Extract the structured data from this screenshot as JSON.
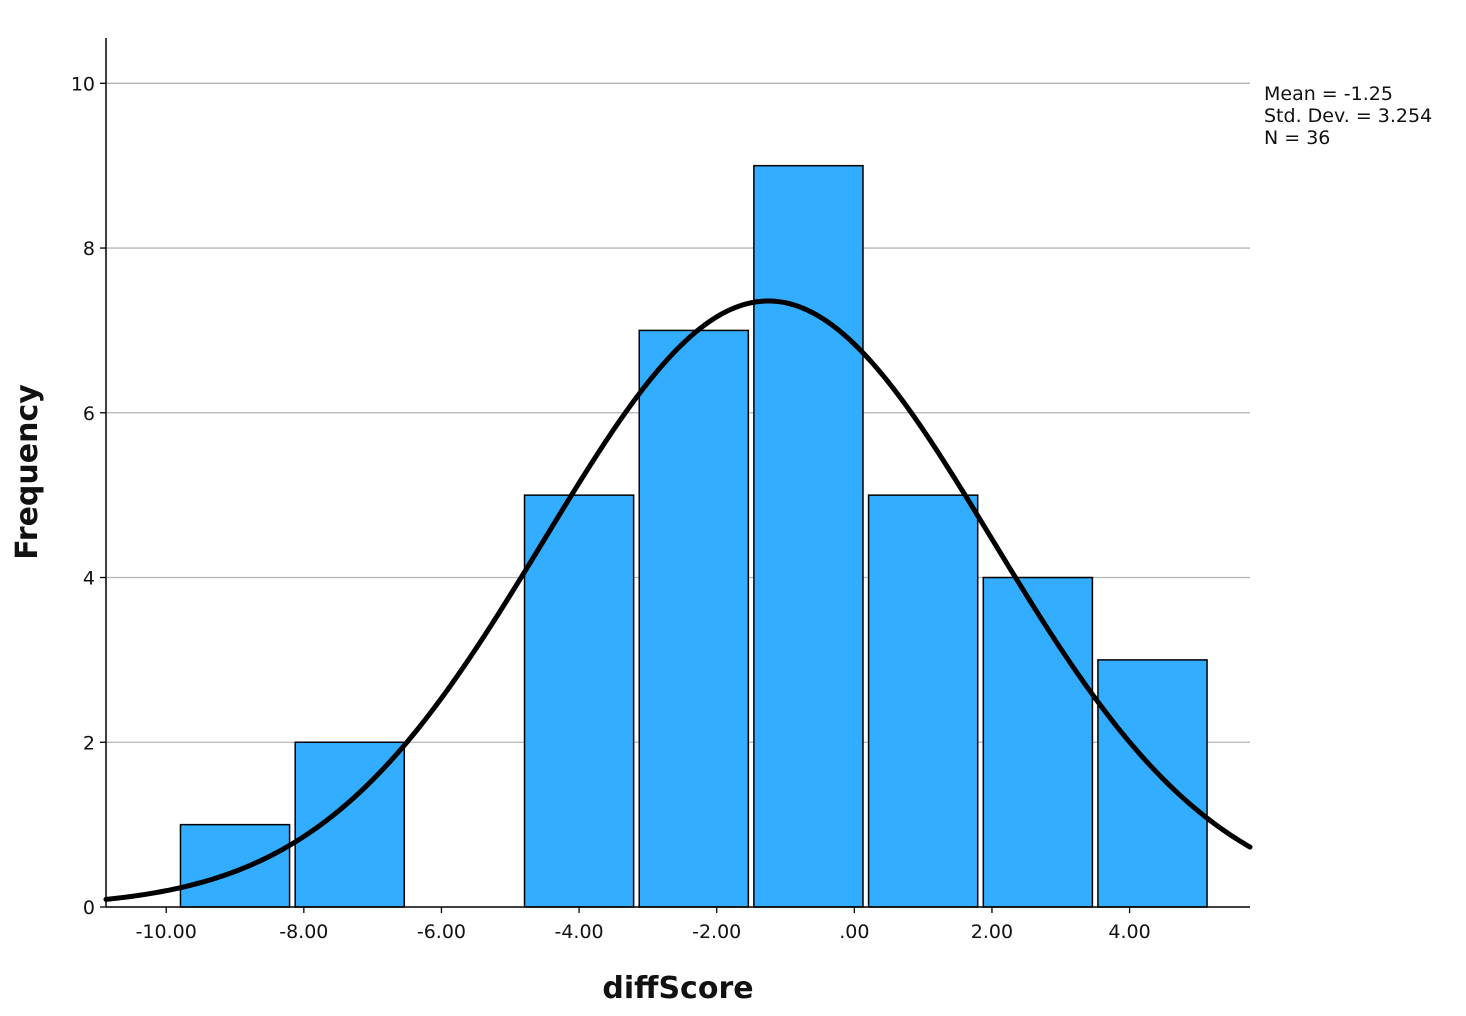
{
  "chart_data": {
    "type": "bar",
    "subtype": "histogram",
    "xlabel": "diffScore",
    "ylabel": "Frequency",
    "bins": [
      {
        "center": -9.0,
        "count": 1
      },
      {
        "center": -7.333,
        "count": 2
      },
      {
        "center": -5.667,
        "count": 0
      },
      {
        "center": -4.0,
        "count": 5
      },
      {
        "center": -2.333,
        "count": 7
      },
      {
        "center": -0.667,
        "count": 9
      },
      {
        "center": 1.0,
        "count": 5
      },
      {
        "center": 2.667,
        "count": 4
      },
      {
        "center": 4.333,
        "count": 3
      }
    ],
    "bin_width": 1.667,
    "x_ticks": [
      {
        "value": -10,
        "label": "-10.00"
      },
      {
        "value": -8,
        "label": "-8.00"
      },
      {
        "value": -6,
        "label": "-6.00"
      },
      {
        "value": -4,
        "label": "-4.00"
      },
      {
        "value": -2,
        "label": "-2.00"
      },
      {
        "value": 0,
        "label": ".00"
      },
      {
        "value": 2,
        "label": "2.00"
      },
      {
        "value": 4,
        "label": "4.00"
      }
    ],
    "y_ticks": [
      {
        "value": 0,
        "label": "0"
      },
      {
        "value": 2,
        "label": "2"
      },
      {
        "value": 4,
        "label": "4"
      },
      {
        "value": 6,
        "label": "6"
      },
      {
        "value": 8,
        "label": "8"
      },
      {
        "value": 10,
        "label": "10"
      }
    ],
    "xlim": [
      -10.875,
      5.75
    ],
    "ylim": [
      0,
      10.55
    ],
    "grid": "horizontal",
    "normal_curve": {
      "mean": -1.25,
      "sd": 3.254,
      "n": 36
    },
    "stats": {
      "mean_text": "Mean = -1.25",
      "sd_text": "Std. Dev. = 3.254",
      "n_text": "N = 36"
    },
    "colors": {
      "bar_fill": "#33adff",
      "bar_stroke": "#000000",
      "curve": "#000000",
      "grid": "#b4b4b4"
    }
  }
}
